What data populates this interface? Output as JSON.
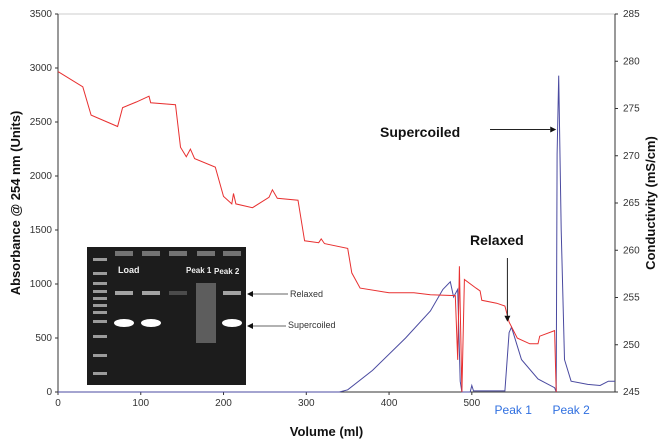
{
  "chart_data": {
    "type": "line",
    "xlabel": "Volume (ml)",
    "ylabel": "Absorbance @ 254 nm (Units)",
    "y2label": "Conductivity (mS/cm)",
    "xlim": [
      0,
      673
    ],
    "ylim": [
      0,
      3500
    ],
    "y2lim": [
      245,
      285
    ],
    "x_ticks": [
      "0",
      "100",
      "200",
      "300",
      "400",
      "500"
    ],
    "y_ticks": [
      "0",
      "500",
      "1000",
      "1500",
      "2000",
      "2500",
      "3000",
      "3500"
    ],
    "y2_ticks": [
      "245",
      "250",
      "255",
      "260",
      "265",
      "270",
      "275",
      "280",
      "285"
    ],
    "grid": false,
    "series": [
      {
        "axis": "left",
        "color": "#4a4aa0",
        "x": [
          0,
          340,
          350,
          380,
          420,
          450,
          465,
          474,
          478,
          483,
          486,
          488,
          498,
          500,
          502,
          540,
          545,
          548,
          560,
          580,
          600,
          602,
          603,
          605,
          608,
          612,
          620,
          640,
          655,
          665,
          673
        ],
        "y": [
          0,
          0,
          20,
          200,
          500,
          750,
          950,
          1020,
          880,
          950,
          100,
          0,
          0,
          60,
          10,
          10,
          550,
          600,
          300,
          120,
          40,
          0,
          2200,
          2930,
          1500,
          300,
          100,
          70,
          60,
          100,
          100
        ]
      },
      {
        "axis": "right",
        "color": "#e83030",
        "x": [
          0,
          30,
          40,
          72,
          78,
          95,
          110,
          112,
          142,
          148,
          155,
          160,
          165,
          190,
          200,
          210,
          212,
          215,
          235,
          255,
          259,
          265,
          290,
          298,
          315,
          318,
          322,
          350,
          355,
          365,
          400,
          430,
          450,
          480,
          483,
          485,
          488,
          491,
          505,
          510,
          512,
          530,
          540,
          545,
          555,
          570,
          580,
          582,
          600,
          602
        ],
        "y": [
          278.9,
          277.3,
          274.3,
          273.1,
          275.1,
          275.7,
          276.3,
          275.6,
          275.4,
          270.9,
          269.9,
          270.7,
          269.7,
          268.8,
          265.7,
          264.9,
          266.0,
          264.9,
          264.5,
          265.6,
          266.4,
          265.5,
          265.3,
          261.0,
          260.8,
          261.2,
          260.7,
          260.2,
          257.6,
          256.0,
          255.5,
          255.5,
          255.3,
          255.2,
          248.4,
          258.3,
          245,
          256.9,
          256.0,
          255.7,
          254.7,
          254.4,
          254.1,
          252.4,
          250.7,
          250.1,
          250.1,
          250.9,
          251.5,
          245
        ]
      }
    ],
    "annotations": [
      {
        "text": "Supercoiled",
        "arrow_to": [
          602,
          2430
        ]
      },
      {
        "text": "Relaxed",
        "arrow_to": [
          543,
          650
        ]
      }
    ],
    "peak_labels": [
      {
        "text": "Peak 1",
        "x": 550
      },
      {
        "text": "Peak 2",
        "x": 620
      }
    ],
    "inset": {
      "lane_labels": [
        "Load",
        "Peak 1",
        "Peak 2"
      ],
      "band_labels": [
        "Relaxed",
        "Supercoiled"
      ]
    }
  }
}
